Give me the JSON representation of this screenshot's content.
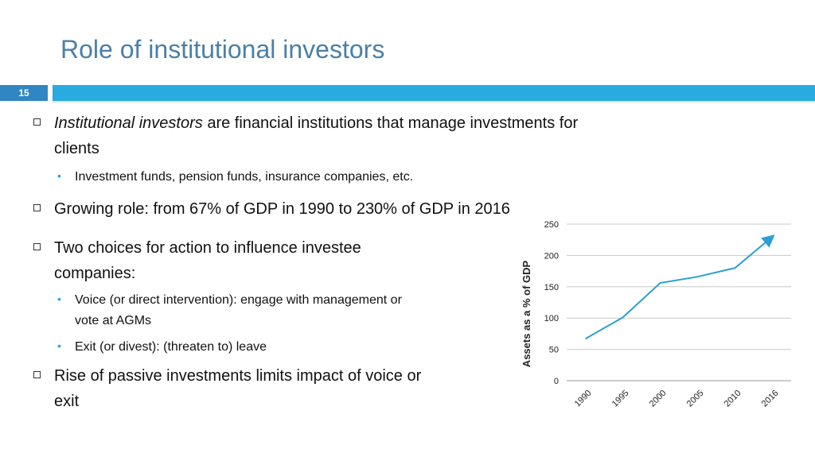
{
  "slide": {
    "title": "Role of institutional investors",
    "number": "15"
  },
  "bullets": {
    "b1_italic": "Institutional investors",
    "b1_rest_line1": " are financial institutions that manage investments for",
    "b1_line2": "clients",
    "b1_sub1": "Investment funds, pension funds, insurance companies, etc.",
    "b2": "Growing role: from 67% of GDP in 1990 to 230% of GDP in 2016",
    "b3_line1": "Two choices for action to influence investee",
    "b3_line2": "companies:",
    "b3_sub1_line1": "Voice (or direct intervention): engage with management or",
    "b3_sub1_line2": "vote at AGMs",
    "b3_sub2": "Exit (or divest): (threaten to) leave",
    "b4_line1": "Rise of passive investments limits impact of voice or",
    "b4_line2": "exit"
  },
  "colors": {
    "accent_bar": "#29abe2",
    "slide_number_bg": "#2f86c2",
    "title": "#4a80a8",
    "line": "#2aa0d0"
  },
  "chart_data": {
    "type": "line",
    "x": [
      "1990",
      "1995",
      "2000",
      "2005",
      "2010",
      "2016"
    ],
    "y": [
      67,
      101,
      156,
      166,
      180,
      230
    ],
    "ylabel": "Assets as a % of GDP",
    "xlabel": "",
    "ylim": [
      0,
      250
    ],
    "yticks": [
      "0",
      "50",
      "100",
      "150",
      "200",
      "250"
    ],
    "grid": true,
    "end_marker": "arrow"
  }
}
